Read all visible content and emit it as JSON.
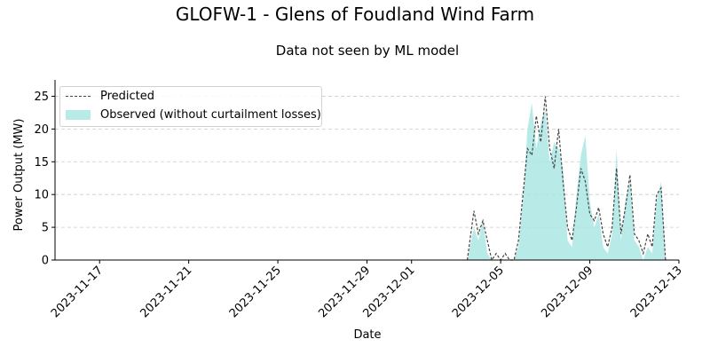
{
  "figure": {
    "suptitle": "GLOFW-1 - Glens of Foudland Wind Farm"
  },
  "chart_data": {
    "type": "area",
    "title": "Data not seen by ML model",
    "xlabel": "Date",
    "ylabel": "Power Output (MW)",
    "xlim": [
      "2023-11-15",
      "2023-12-13"
    ],
    "ylim": [
      0,
      27.5
    ],
    "x_ticks": [
      "2023-11-17",
      "2023-11-21",
      "2023-11-25",
      "2023-11-29",
      "2023-12-01",
      "2023-12-05",
      "2023-12-09",
      "2023-12-13"
    ],
    "y_ticks": [
      0,
      5,
      10,
      15,
      20,
      25
    ],
    "grid": "y-dashed",
    "legend_position": "top-left",
    "legend": [
      "Predicted",
      "Observed (without curtailment losses)"
    ],
    "colors": {
      "predicted": "#444444",
      "observed": "#a6e6e2"
    },
    "x_days_since_2023-11-15": [
      18.5,
      18.8,
      19.0,
      19.2,
      19.4,
      19.6,
      19.8,
      20.0,
      20.2,
      20.4,
      20.6,
      20.8,
      21.0,
      21.2,
      21.4,
      21.6,
      21.8,
      22.0,
      22.2,
      22.4,
      22.6,
      22.8,
      23.0,
      23.2,
      23.4,
      23.6,
      23.8,
      24.0,
      24.2,
      24.4,
      24.6,
      24.8,
      25.0,
      25.2,
      25.4,
      25.6,
      25.8,
      26.0,
      26.2,
      26.4,
      26.6,
      26.8,
      27.0,
      27.2,
      27.4
    ],
    "series": [
      {
        "name": "Predicted",
        "style": "dashed-line",
        "values": [
          0,
          7.5,
          4,
          6,
          3,
          0,
          1,
          0,
          1,
          0,
          0,
          3,
          10,
          17,
          16,
          22,
          18,
          25,
          17,
          14,
          20,
          12,
          5,
          3,
          8,
          14,
          12,
          7,
          6,
          8,
          4,
          2,
          5,
          14,
          4,
          8,
          13,
          4,
          3,
          1,
          4,
          2,
          10,
          11,
          0
        ]
      },
      {
        "name": "Observed (without curtailment losses)",
        "style": "filled-area",
        "values": [
          0,
          5,
          3,
          6,
          1,
          0,
          0,
          0,
          0,
          0,
          0,
          2,
          9,
          20,
          24,
          17,
          21,
          23,
          15,
          18,
          17,
          14,
          3,
          2,
          10,
          16,
          19,
          9,
          5,
          7,
          2,
          1,
          4,
          17,
          3,
          9,
          12,
          3,
          2,
          0,
          2,
          1,
          9,
          12,
          0
        ]
      }
    ]
  }
}
